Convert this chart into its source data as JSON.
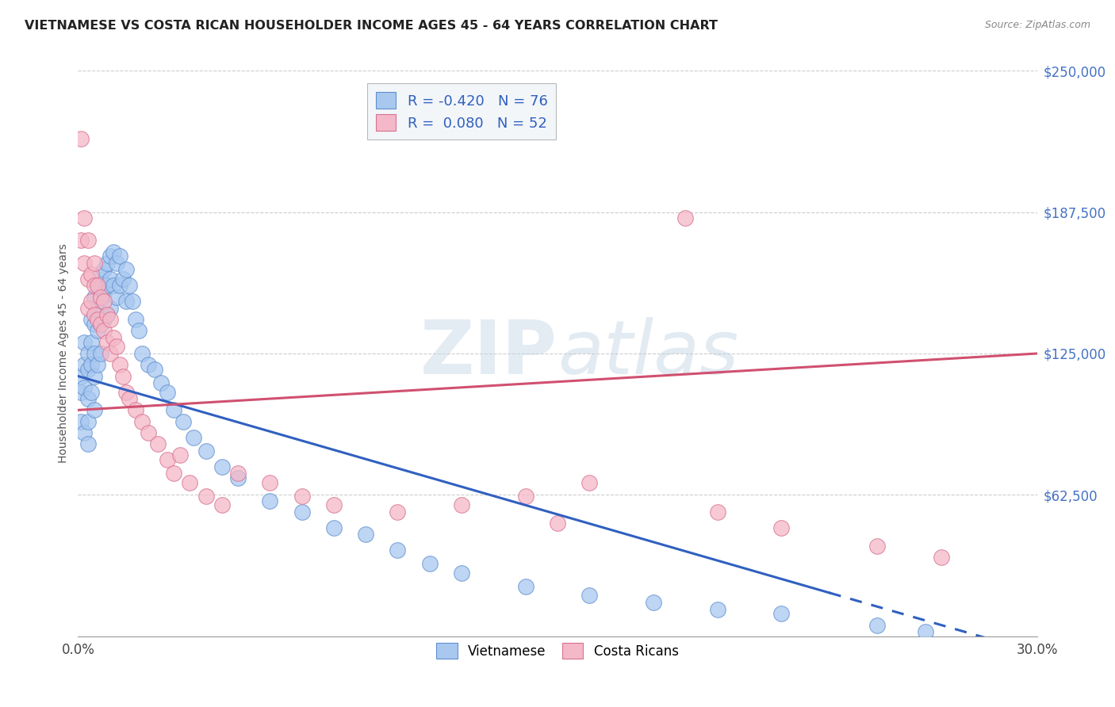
{
  "title": "VIETNAMESE VS COSTA RICAN HOUSEHOLDER INCOME AGES 45 - 64 YEARS CORRELATION CHART",
  "source": "Source: ZipAtlas.com",
  "ylabel": "Householder Income Ages 45 - 64 years",
  "xlim": [
    0.0,
    0.3
  ],
  "ylim": [
    0,
    250000
  ],
  "xticks": [
    0.0,
    0.05,
    0.1,
    0.15,
    0.2,
    0.25,
    0.3
  ],
  "xticklabels": [
    "0.0%",
    "",
    "",
    "",
    "",
    "",
    "30.0%"
  ],
  "ytick_positions": [
    62500,
    125000,
    187500,
    250000
  ],
  "ytick_labels": [
    "$62,500",
    "$125,000",
    "$187,500",
    "$250,000"
  ],
  "watermark_zip": "ZIP",
  "watermark_atlas": "atlas",
  "legend_labels": [
    "Vietnamese",
    "Costa Ricans"
  ],
  "blue_fill": "#a8c8f0",
  "pink_fill": "#f4b8c8",
  "blue_edge": "#6090d0",
  "pink_edge": "#d87090",
  "blue_line": "#3060c0",
  "pink_line": "#d05070",
  "R_blue": -0.42,
  "N_blue": 76,
  "R_pink": 0.08,
  "N_pink": 52,
  "blue_x": [
    0.001,
    0.001,
    0.001,
    0.002,
    0.002,
    0.002,
    0.002,
    0.003,
    0.003,
    0.003,
    0.003,
    0.003,
    0.004,
    0.004,
    0.004,
    0.004,
    0.005,
    0.005,
    0.005,
    0.005,
    0.005,
    0.006,
    0.006,
    0.006,
    0.006,
    0.007,
    0.007,
    0.007,
    0.007,
    0.008,
    0.008,
    0.008,
    0.009,
    0.009,
    0.009,
    0.01,
    0.01,
    0.01,
    0.011,
    0.011,
    0.012,
    0.012,
    0.013,
    0.013,
    0.014,
    0.015,
    0.015,
    0.016,
    0.017,
    0.018,
    0.019,
    0.02,
    0.022,
    0.024,
    0.026,
    0.028,
    0.03,
    0.033,
    0.036,
    0.04,
    0.045,
    0.05,
    0.06,
    0.07,
    0.08,
    0.09,
    0.1,
    0.11,
    0.12,
    0.14,
    0.16,
    0.18,
    0.2,
    0.22,
    0.25,
    0.265
  ],
  "blue_y": [
    115000,
    108000,
    95000,
    130000,
    120000,
    110000,
    90000,
    125000,
    118000,
    105000,
    95000,
    85000,
    140000,
    130000,
    120000,
    108000,
    150000,
    138000,
    125000,
    115000,
    100000,
    155000,
    145000,
    135000,
    120000,
    160000,
    150000,
    138000,
    125000,
    162000,
    152000,
    140000,
    165000,
    155000,
    142000,
    168000,
    158000,
    145000,
    170000,
    155000,
    165000,
    150000,
    168000,
    155000,
    158000,
    162000,
    148000,
    155000,
    148000,
    140000,
    135000,
    125000,
    120000,
    118000,
    112000,
    108000,
    100000,
    95000,
    88000,
    82000,
    75000,
    70000,
    60000,
    55000,
    48000,
    45000,
    38000,
    32000,
    28000,
    22000,
    18000,
    15000,
    12000,
    10000,
    5000,
    2000
  ],
  "pink_x": [
    0.001,
    0.001,
    0.002,
    0.002,
    0.003,
    0.003,
    0.003,
    0.004,
    0.004,
    0.005,
    0.005,
    0.005,
    0.006,
    0.006,
    0.007,
    0.007,
    0.008,
    0.008,
    0.009,
    0.009,
    0.01,
    0.01,
    0.011,
    0.012,
    0.013,
    0.014,
    0.015,
    0.016,
    0.018,
    0.02,
    0.022,
    0.025,
    0.028,
    0.03,
    0.032,
    0.035,
    0.04,
    0.045,
    0.05,
    0.06,
    0.07,
    0.08,
    0.1,
    0.12,
    0.14,
    0.15,
    0.16,
    0.19,
    0.2,
    0.22,
    0.25,
    0.27
  ],
  "pink_y": [
    220000,
    175000,
    185000,
    165000,
    175000,
    158000,
    145000,
    160000,
    148000,
    165000,
    155000,
    142000,
    155000,
    140000,
    150000,
    138000,
    148000,
    135000,
    142000,
    130000,
    140000,
    125000,
    132000,
    128000,
    120000,
    115000,
    108000,
    105000,
    100000,
    95000,
    90000,
    85000,
    78000,
    72000,
    80000,
    68000,
    62000,
    58000,
    72000,
    68000,
    62000,
    58000,
    55000,
    58000,
    62000,
    50000,
    68000,
    185000,
    55000,
    48000,
    40000,
    35000
  ]
}
